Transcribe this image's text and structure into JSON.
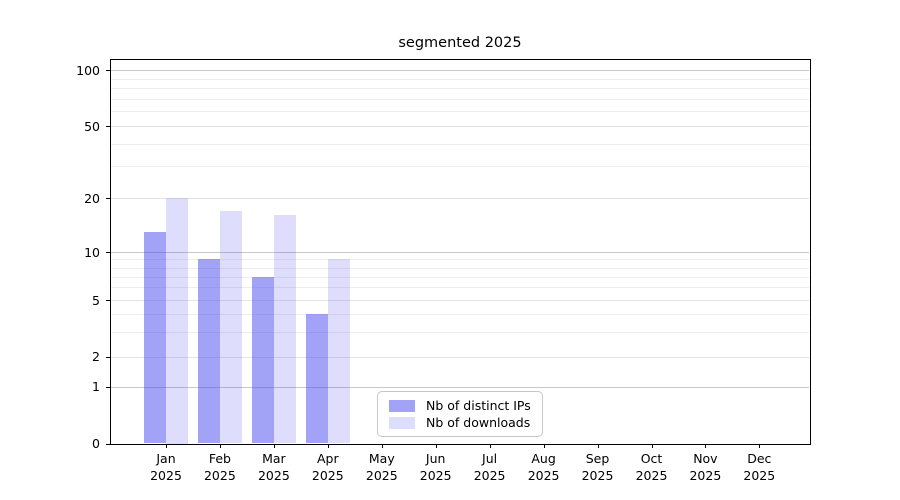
{
  "title": "segmented 2025",
  "chart_data": {
    "type": "bar",
    "title": "segmented 2025",
    "categories": [
      "Jan 2025",
      "Feb 2025",
      "Mar 2025",
      "Apr 2025",
      "May 2025",
      "Jun 2025",
      "Jul 2025",
      "Aug 2025",
      "Sep 2025",
      "Oct 2025",
      "Nov 2025",
      "Dec 2025"
    ],
    "x_ticks": [
      {
        "month": "Jan",
        "year": "2025"
      },
      {
        "month": "Feb",
        "year": "2025"
      },
      {
        "month": "Mar",
        "year": "2025"
      },
      {
        "month": "Apr",
        "year": "2025"
      },
      {
        "month": "May",
        "year": "2025"
      },
      {
        "month": "Jun",
        "year": "2025"
      },
      {
        "month": "Jul",
        "year": "2025"
      },
      {
        "month": "Aug",
        "year": "2025"
      },
      {
        "month": "Sep",
        "year": "2025"
      },
      {
        "month": "Oct",
        "year": "2025"
      },
      {
        "month": "Nov",
        "year": "2025"
      },
      {
        "month": "Dec",
        "year": "2025"
      }
    ],
    "series": [
      {
        "name": "Nb of distinct IPs",
        "color": "rgba(70,70,240,0.5)",
        "color_solid": "#a2a2f7",
        "values": [
          13,
          9,
          7,
          4,
          null,
          null,
          null,
          null,
          null,
          null,
          null,
          null
        ]
      },
      {
        "name": "Nb of downloads",
        "color": "rgba(70,70,240,0.18)",
        "color_solid": "#ddddfc",
        "values": [
          20,
          17,
          16,
          9,
          null,
          null,
          null,
          null,
          null,
          null,
          null,
          null
        ]
      }
    ],
    "yscale": "log-like (compressed near zero)",
    "ylim": [
      0,
      100
    ],
    "y_ticks": [
      {
        "label": "0",
        "value": 0
      },
      {
        "label": "1",
        "value": 1
      },
      {
        "label": "2",
        "value": 2
      },
      {
        "label": "5",
        "value": 5
      },
      {
        "label": "10",
        "value": 10
      },
      {
        "label": "20",
        "value": 20
      },
      {
        "label": "50",
        "value": 50
      },
      {
        "label": "100",
        "value": 100
      }
    ],
    "y_minor_gridlines": [
      3,
      4,
      6,
      7,
      8,
      9,
      30,
      40,
      60,
      70,
      80,
      90
    ],
    "grid": true,
    "legend_position": "lower center"
  },
  "colors": {
    "decade_gridline": "#c9c9c9",
    "major_gridline": "#e4e4e4",
    "minor_gridline": "#ededed",
    "frame": "#000000",
    "background": "#ffffff"
  }
}
